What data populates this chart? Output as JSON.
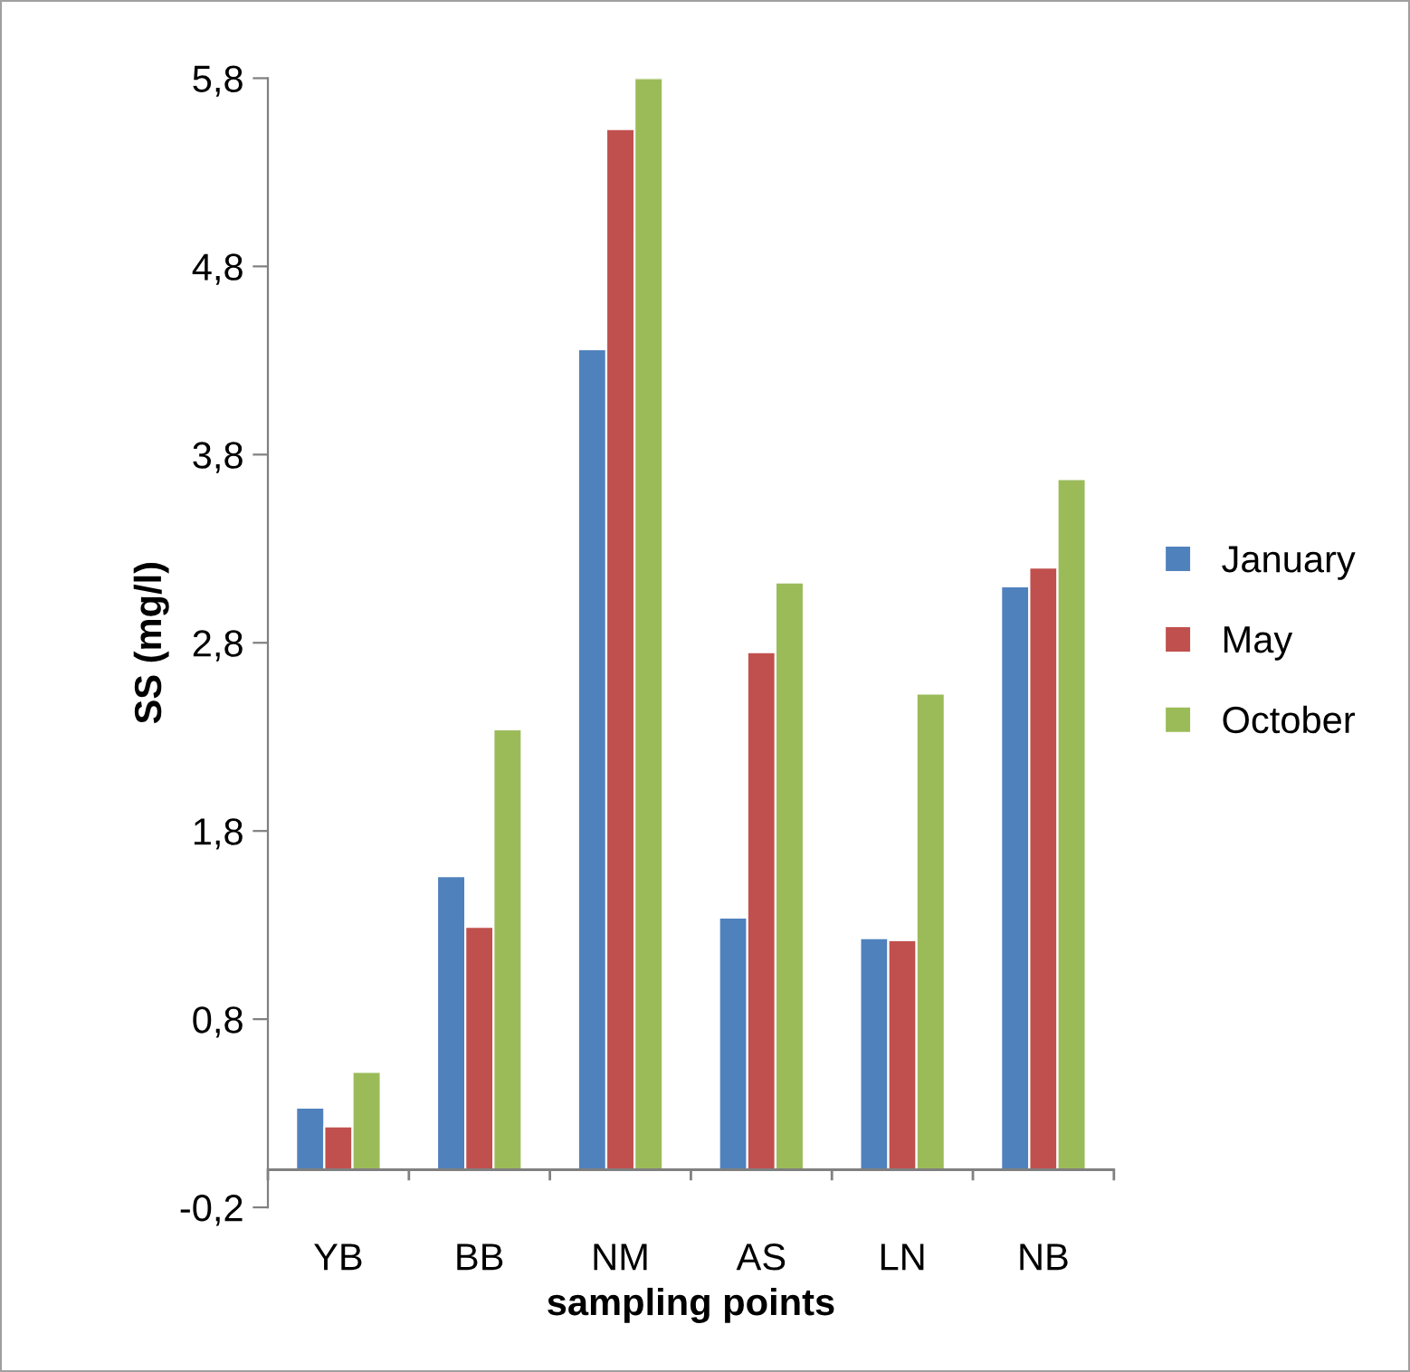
{
  "chart_data": {
    "type": "bar",
    "xlabel": "sampling points",
    "ylabel": "SS (mg/l)",
    "categories": [
      "YB",
      "BB",
      "NM",
      "AS",
      "LN",
      "NB"
    ],
    "series": [
      {
        "name": "January",
        "color": "#4f81bd",
        "values": [
          0.33,
          1.56,
          4.36,
          1.34,
          1.23,
          3.1
        ]
      },
      {
        "name": "May",
        "color": "#c0504d",
        "values": [
          0.23,
          1.29,
          5.53,
          2.75,
          1.22,
          3.2
        ]
      },
      {
        "name": "October",
        "color": "#9bbb59",
        "values": [
          0.52,
          2.34,
          5.8,
          3.12,
          2.53,
          3.67
        ]
      }
    ],
    "ylim": [
      -0.2,
      5.8
    ],
    "yticks": [
      {
        "value": -0.2,
        "label": "-0,2"
      },
      {
        "value": 0.8,
        "label": "0,8"
      },
      {
        "value": 1.8,
        "label": "1,8"
      },
      {
        "value": 2.8,
        "label": "2,8"
      },
      {
        "value": 3.8,
        "label": "3,8"
      },
      {
        "value": 4.8,
        "label": "4,8"
      },
      {
        "value": 5.8,
        "label": "5,8"
      }
    ],
    "grid": false,
    "legend": "right"
  }
}
